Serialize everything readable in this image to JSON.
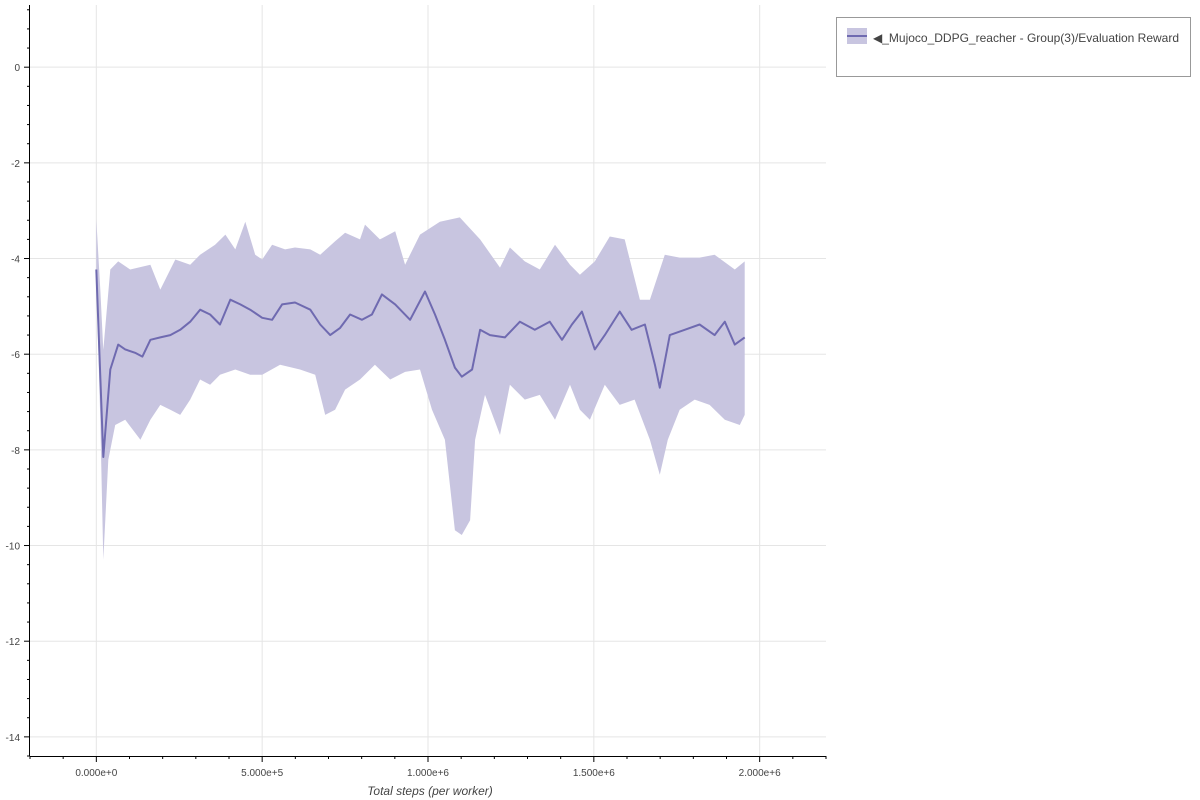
{
  "chart_data": {
    "type": "area",
    "title": "",
    "xlabel": "Total steps (per worker)",
    "ylabel": "",
    "xlim": [
      -200000,
      2200000
    ],
    "ylim": [
      -14.4,
      1.3
    ],
    "x_ticks": [
      0,
      500000,
      1000000,
      1500000,
      2000000
    ],
    "x_tick_labels": [
      "0.000e+0",
      "5.000e+5",
      "1.000e+6",
      "1.500e+6",
      "2.000e+6"
    ],
    "y_ticks": [
      0,
      -2,
      -4,
      -6,
      -8,
      -10,
      -12,
      -14
    ],
    "y_tick_labels": [
      "0",
      "-2",
      "-4",
      "-6",
      "-8",
      "-10",
      "-12",
      "-14"
    ],
    "grid": true,
    "legend_placement": "outside-top-right",
    "colors": {
      "band": "#c8c5e0",
      "line": "#6f6ab0"
    },
    "series": [
      {
        "name": "◀_Mujoco_DDPG_reacher - Group(3)/Evaluation Reward",
        "mean": [
          [
            0,
            -4.23
          ],
          [
            21000,
            -8.15
          ],
          [
            42000,
            -6.32
          ],
          [
            66000,
            -5.8
          ],
          [
            87000,
            -5.9
          ],
          [
            117000,
            -5.97
          ],
          [
            139000,
            -6.05
          ],
          [
            163000,
            -5.7
          ],
          [
            193000,
            -5.65
          ],
          [
            223000,
            -5.6
          ],
          [
            253000,
            -5.49
          ],
          [
            283000,
            -5.32
          ],
          [
            313000,
            -5.07
          ],
          [
            343000,
            -5.17
          ],
          [
            373000,
            -5.38
          ],
          [
            404000,
            -4.86
          ],
          [
            434000,
            -4.96
          ],
          [
            464000,
            -5.07
          ],
          [
            500000,
            -5.24
          ],
          [
            530000,
            -5.28
          ],
          [
            560000,
            -4.96
          ],
          [
            599000,
            -4.92
          ],
          [
            645000,
            -5.07
          ],
          [
            675000,
            -5.38
          ],
          [
            705000,
            -5.6
          ],
          [
            735000,
            -5.45
          ],
          [
            765000,
            -5.17
          ],
          [
            801000,
            -5.28
          ],
          [
            831000,
            -5.17
          ],
          [
            861000,
            -4.75
          ],
          [
            901000,
            -4.96
          ],
          [
            946000,
            -5.28
          ],
          [
            991000,
            -4.69
          ],
          [
            1021000,
            -5.17
          ],
          [
            1051000,
            -5.7
          ],
          [
            1081000,
            -6.28
          ],
          [
            1102000,
            -6.47
          ],
          [
            1133000,
            -6.32
          ],
          [
            1157000,
            -5.49
          ],
          [
            1187000,
            -5.6
          ],
          [
            1232000,
            -5.65
          ],
          [
            1277000,
            -5.32
          ],
          [
            1322000,
            -5.49
          ],
          [
            1367000,
            -5.32
          ],
          [
            1404000,
            -5.7
          ],
          [
            1434000,
            -5.38
          ],
          [
            1464000,
            -5.11
          ],
          [
            1503000,
            -5.9
          ],
          [
            1533000,
            -5.6
          ],
          [
            1578000,
            -5.11
          ],
          [
            1614000,
            -5.49
          ],
          [
            1654000,
            -5.38
          ],
          [
            1684000,
            -6.22
          ],
          [
            1699000,
            -6.7
          ],
          [
            1729000,
            -5.6
          ],
          [
            1774000,
            -5.49
          ],
          [
            1819000,
            -5.38
          ],
          [
            1864000,
            -5.6
          ],
          [
            1895000,
            -5.32
          ],
          [
            1925000,
            -5.8
          ],
          [
            1955000,
            -5.65
          ]
        ],
        "upper": [
          [
            0,
            -3.18
          ],
          [
            12000,
            -4.65
          ],
          [
            21000,
            -5.91
          ],
          [
            42000,
            -4.23
          ],
          [
            66000,
            -4.06
          ],
          [
            102000,
            -4.23
          ],
          [
            163000,
            -4.13
          ],
          [
            193000,
            -4.65
          ],
          [
            238000,
            -4.02
          ],
          [
            283000,
            -4.13
          ],
          [
            313000,
            -3.92
          ],
          [
            358000,
            -3.71
          ],
          [
            389000,
            -3.5
          ],
          [
            419000,
            -3.81
          ],
          [
            449000,
            -3.23
          ],
          [
            479000,
            -3.92
          ],
          [
            500000,
            -4.02
          ],
          [
            530000,
            -3.71
          ],
          [
            569000,
            -3.81
          ],
          [
            599000,
            -3.77
          ],
          [
            645000,
            -3.81
          ],
          [
            675000,
            -3.92
          ],
          [
            720000,
            -3.64
          ],
          [
            750000,
            -3.46
          ],
          [
            795000,
            -3.6
          ],
          [
            810000,
            -3.29
          ],
          [
            855000,
            -3.6
          ],
          [
            901000,
            -3.43
          ],
          [
            931000,
            -4.13
          ],
          [
            976000,
            -3.5
          ],
          [
            1036000,
            -3.23
          ],
          [
            1096000,
            -3.14
          ],
          [
            1157000,
            -3.6
          ],
          [
            1217000,
            -4.19
          ],
          [
            1247000,
            -3.77
          ],
          [
            1292000,
            -4.06
          ],
          [
            1337000,
            -4.23
          ],
          [
            1383000,
            -3.71
          ],
          [
            1428000,
            -4.13
          ],
          [
            1458000,
            -4.34
          ],
          [
            1503000,
            -4.06
          ],
          [
            1548000,
            -3.54
          ],
          [
            1593000,
            -3.6
          ],
          [
            1639000,
            -4.86
          ],
          [
            1669000,
            -4.86
          ],
          [
            1714000,
            -3.92
          ],
          [
            1759000,
            -3.98
          ],
          [
            1819000,
            -3.98
          ],
          [
            1864000,
            -3.92
          ],
          [
            1925000,
            -4.23
          ],
          [
            1955000,
            -4.06
          ]
        ],
        "lower": [
          [
            0,
            -4.44
          ],
          [
            12000,
            -7.37
          ],
          [
            21000,
            -10.3
          ],
          [
            36000,
            -8.21
          ],
          [
            57000,
            -7.48
          ],
          [
            87000,
            -7.37
          ],
          [
            133000,
            -7.79
          ],
          [
            163000,
            -7.37
          ],
          [
            193000,
            -7.06
          ],
          [
            223000,
            -7.16
          ],
          [
            253000,
            -7.27
          ],
          [
            283000,
            -6.95
          ],
          [
            313000,
            -6.53
          ],
          [
            343000,
            -6.64
          ],
          [
            373000,
            -6.43
          ],
          [
            419000,
            -6.32
          ],
          [
            464000,
            -6.43
          ],
          [
            500000,
            -6.43
          ],
          [
            554000,
            -6.22
          ],
          [
            614000,
            -6.32
          ],
          [
            660000,
            -6.43
          ],
          [
            690000,
            -7.27
          ],
          [
            720000,
            -7.16
          ],
          [
            750000,
            -6.74
          ],
          [
            795000,
            -6.53
          ],
          [
            840000,
            -6.22
          ],
          [
            886000,
            -6.53
          ],
          [
            931000,
            -6.37
          ],
          [
            976000,
            -6.32
          ],
          [
            1012000,
            -7.16
          ],
          [
            1051000,
            -7.79
          ],
          [
            1081000,
            -9.68
          ],
          [
            1102000,
            -9.78
          ],
          [
            1127000,
            -9.47
          ],
          [
            1142000,
            -7.79
          ],
          [
            1172000,
            -6.85
          ],
          [
            1217000,
            -7.69
          ],
          [
            1247000,
            -6.64
          ],
          [
            1292000,
            -6.95
          ],
          [
            1337000,
            -6.85
          ],
          [
            1383000,
            -7.37
          ],
          [
            1428000,
            -6.64
          ],
          [
            1458000,
            -7.16
          ],
          [
            1488000,
            -7.37
          ],
          [
            1533000,
            -6.64
          ],
          [
            1578000,
            -7.06
          ],
          [
            1623000,
            -6.95
          ],
          [
            1669000,
            -7.79
          ],
          [
            1699000,
            -8.52
          ],
          [
            1723000,
            -7.79
          ],
          [
            1759000,
            -7.16
          ],
          [
            1804000,
            -6.95
          ],
          [
            1849000,
            -7.06
          ],
          [
            1895000,
            -7.37
          ],
          [
            1940000,
            -7.48
          ],
          [
            1955000,
            -7.27
          ]
        ]
      }
    ]
  },
  "legend": {
    "entry_label": "◀_Mujoco_DDPG_reacher - Group(3)/Evaluation Reward"
  }
}
